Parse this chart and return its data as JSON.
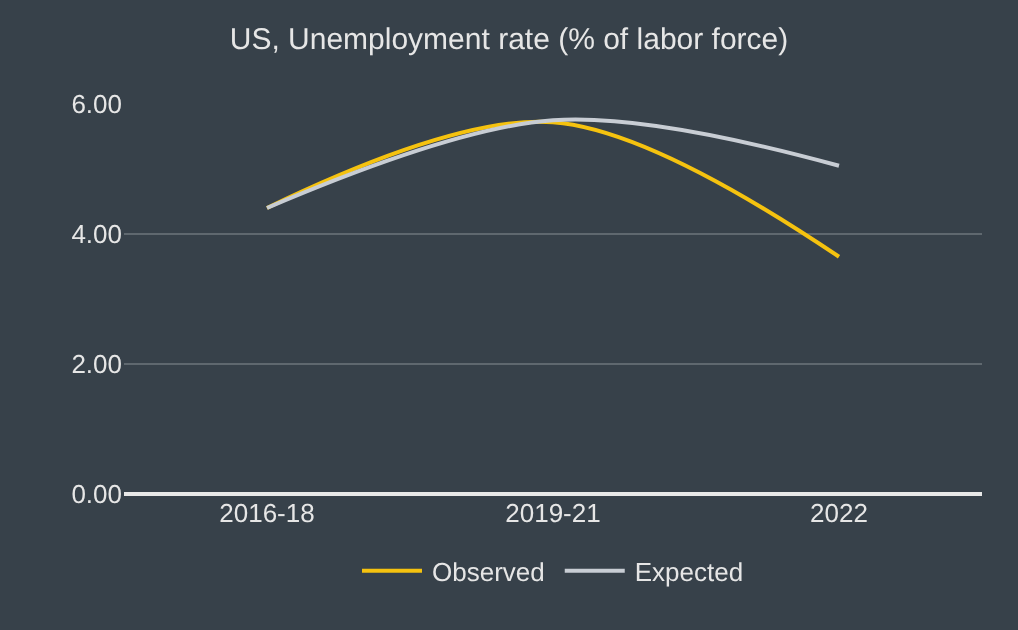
{
  "chart_data": {
    "type": "line",
    "title": "US, Unemployment rate (% of labor force)",
    "categories": [
      "2016-18",
      "2019-21",
      "2022"
    ],
    "series": [
      {
        "name": "Observed",
        "color": "#f5c20f",
        "values": [
          4.4,
          5.72,
          3.65
        ]
      },
      {
        "name": "Expected",
        "color": "#c8cdd4",
        "values": [
          4.4,
          5.75,
          5.05
        ]
      }
    ],
    "ylim": [
      0,
      6
    ],
    "yticks": [
      {
        "value": 0,
        "label": "0.00"
      },
      {
        "value": 2,
        "label": "2.00"
      },
      {
        "value": 4,
        "label": "4.00"
      },
      {
        "value": 6,
        "label": "6.00"
      }
    ],
    "grid": "y",
    "legend": "bottom",
    "marker": "none",
    "line_style": "solid"
  }
}
